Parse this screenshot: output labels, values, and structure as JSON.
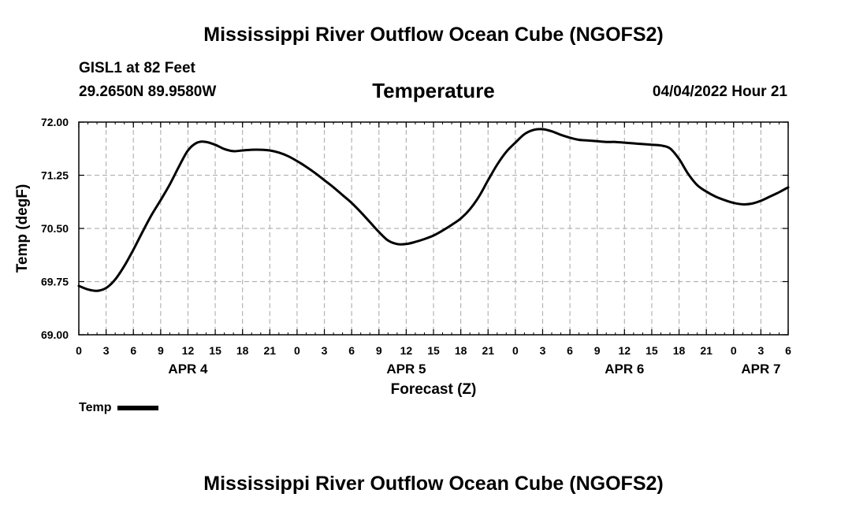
{
  "header": {
    "title": "Mississippi River Outflow Ocean Cube (NGOFS2)",
    "station": "GISL1 at 82 Feet",
    "coords": "29.2650N  89.9580W",
    "chart_title": "Temperature",
    "timestamp": "04/04/2022 Hour 21"
  },
  "footer": {
    "title": "Mississippi River Outflow Ocean Cube (NGOFS2)"
  },
  "legend": {
    "label": "Temp"
  },
  "colors": {
    "line": "#000000",
    "grid": "#b4b4b4",
    "background": "#ffffff"
  },
  "chart_data": {
    "type": "line",
    "title": "Temperature",
    "xlabel": "Forecast (Z)",
    "ylabel": "Temp (degF)",
    "xlim_hours": [
      0,
      78
    ],
    "ylim": [
      69.0,
      72.0
    ],
    "y_ticks": [
      "69.00",
      "69.75",
      "70.50",
      "71.25",
      "72.00"
    ],
    "x_ticks": [
      {
        "h": 0,
        "label": "0"
      },
      {
        "h": 3,
        "label": "3"
      },
      {
        "h": 6,
        "label": "6"
      },
      {
        "h": 9,
        "label": "9"
      },
      {
        "h": 12,
        "label": "12"
      },
      {
        "h": 15,
        "label": "15"
      },
      {
        "h": 18,
        "label": "18"
      },
      {
        "h": 21,
        "label": "21"
      },
      {
        "h": 24,
        "label": "0"
      },
      {
        "h": 27,
        "label": "3"
      },
      {
        "h": 30,
        "label": "6"
      },
      {
        "h": 33,
        "label": "9"
      },
      {
        "h": 36,
        "label": "12"
      },
      {
        "h": 39,
        "label": "15"
      },
      {
        "h": 42,
        "label": "18"
      },
      {
        "h": 45,
        "label": "21"
      },
      {
        "h": 48,
        "label": "0"
      },
      {
        "h": 51,
        "label": "3"
      },
      {
        "h": 54,
        "label": "6"
      },
      {
        "h": 57,
        "label": "9"
      },
      {
        "h": 60,
        "label": "12"
      },
      {
        "h": 63,
        "label": "15"
      },
      {
        "h": 66,
        "label": "18"
      },
      {
        "h": 69,
        "label": "21"
      },
      {
        "h": 72,
        "label": "0"
      },
      {
        "h": 75,
        "label": "3"
      },
      {
        "h": 78,
        "label": "6"
      }
    ],
    "day_labels": [
      {
        "h": 12,
        "label": "APR 4"
      },
      {
        "h": 36,
        "label": "APR 5"
      },
      {
        "h": 60,
        "label": "APR 6"
      },
      {
        "h": 75,
        "label": "APR 7"
      }
    ],
    "series": [
      {
        "name": "Temp",
        "x_hours": [
          0,
          1,
          2,
          3,
          4,
          5,
          6,
          7,
          8,
          9,
          10,
          11,
          12,
          13,
          14,
          15,
          16,
          17,
          18,
          19,
          20,
          21,
          22,
          23,
          24,
          25,
          26,
          27,
          28,
          29,
          30,
          31,
          32,
          33,
          34,
          35,
          36,
          37,
          38,
          39,
          40,
          41,
          42,
          43,
          44,
          45,
          46,
          47,
          48,
          49,
          50,
          51,
          52,
          53,
          54,
          55,
          56,
          57,
          58,
          59,
          60,
          61,
          62,
          63,
          64,
          65,
          66,
          67,
          68,
          69,
          70,
          71,
          72,
          73,
          74,
          75,
          76,
          77,
          78
        ],
        "values": [
          69.69,
          69.64,
          69.62,
          69.66,
          69.78,
          69.97,
          70.2,
          70.45,
          70.69,
          70.9,
          71.12,
          71.37,
          71.6,
          71.71,
          71.72,
          71.68,
          71.62,
          71.59,
          71.6,
          71.61,
          71.61,
          71.6,
          71.57,
          71.52,
          71.45,
          71.37,
          71.28,
          71.18,
          71.08,
          70.97,
          70.86,
          70.73,
          70.59,
          70.45,
          70.33,
          70.28,
          70.28,
          70.31,
          70.35,
          70.4,
          70.47,
          70.55,
          70.64,
          70.77,
          70.95,
          71.18,
          71.4,
          71.58,
          71.71,
          71.83,
          71.89,
          71.9,
          71.87,
          71.82,
          71.78,
          71.75,
          71.74,
          71.73,
          71.72,
          71.72,
          71.71,
          71.7,
          71.69,
          71.68,
          71.67,
          71.63,
          71.48,
          71.27,
          71.11,
          71.02,
          70.95,
          70.9,
          70.86,
          70.84,
          70.85,
          70.89,
          70.95,
          71.01,
          71.08
        ]
      }
    ]
  }
}
